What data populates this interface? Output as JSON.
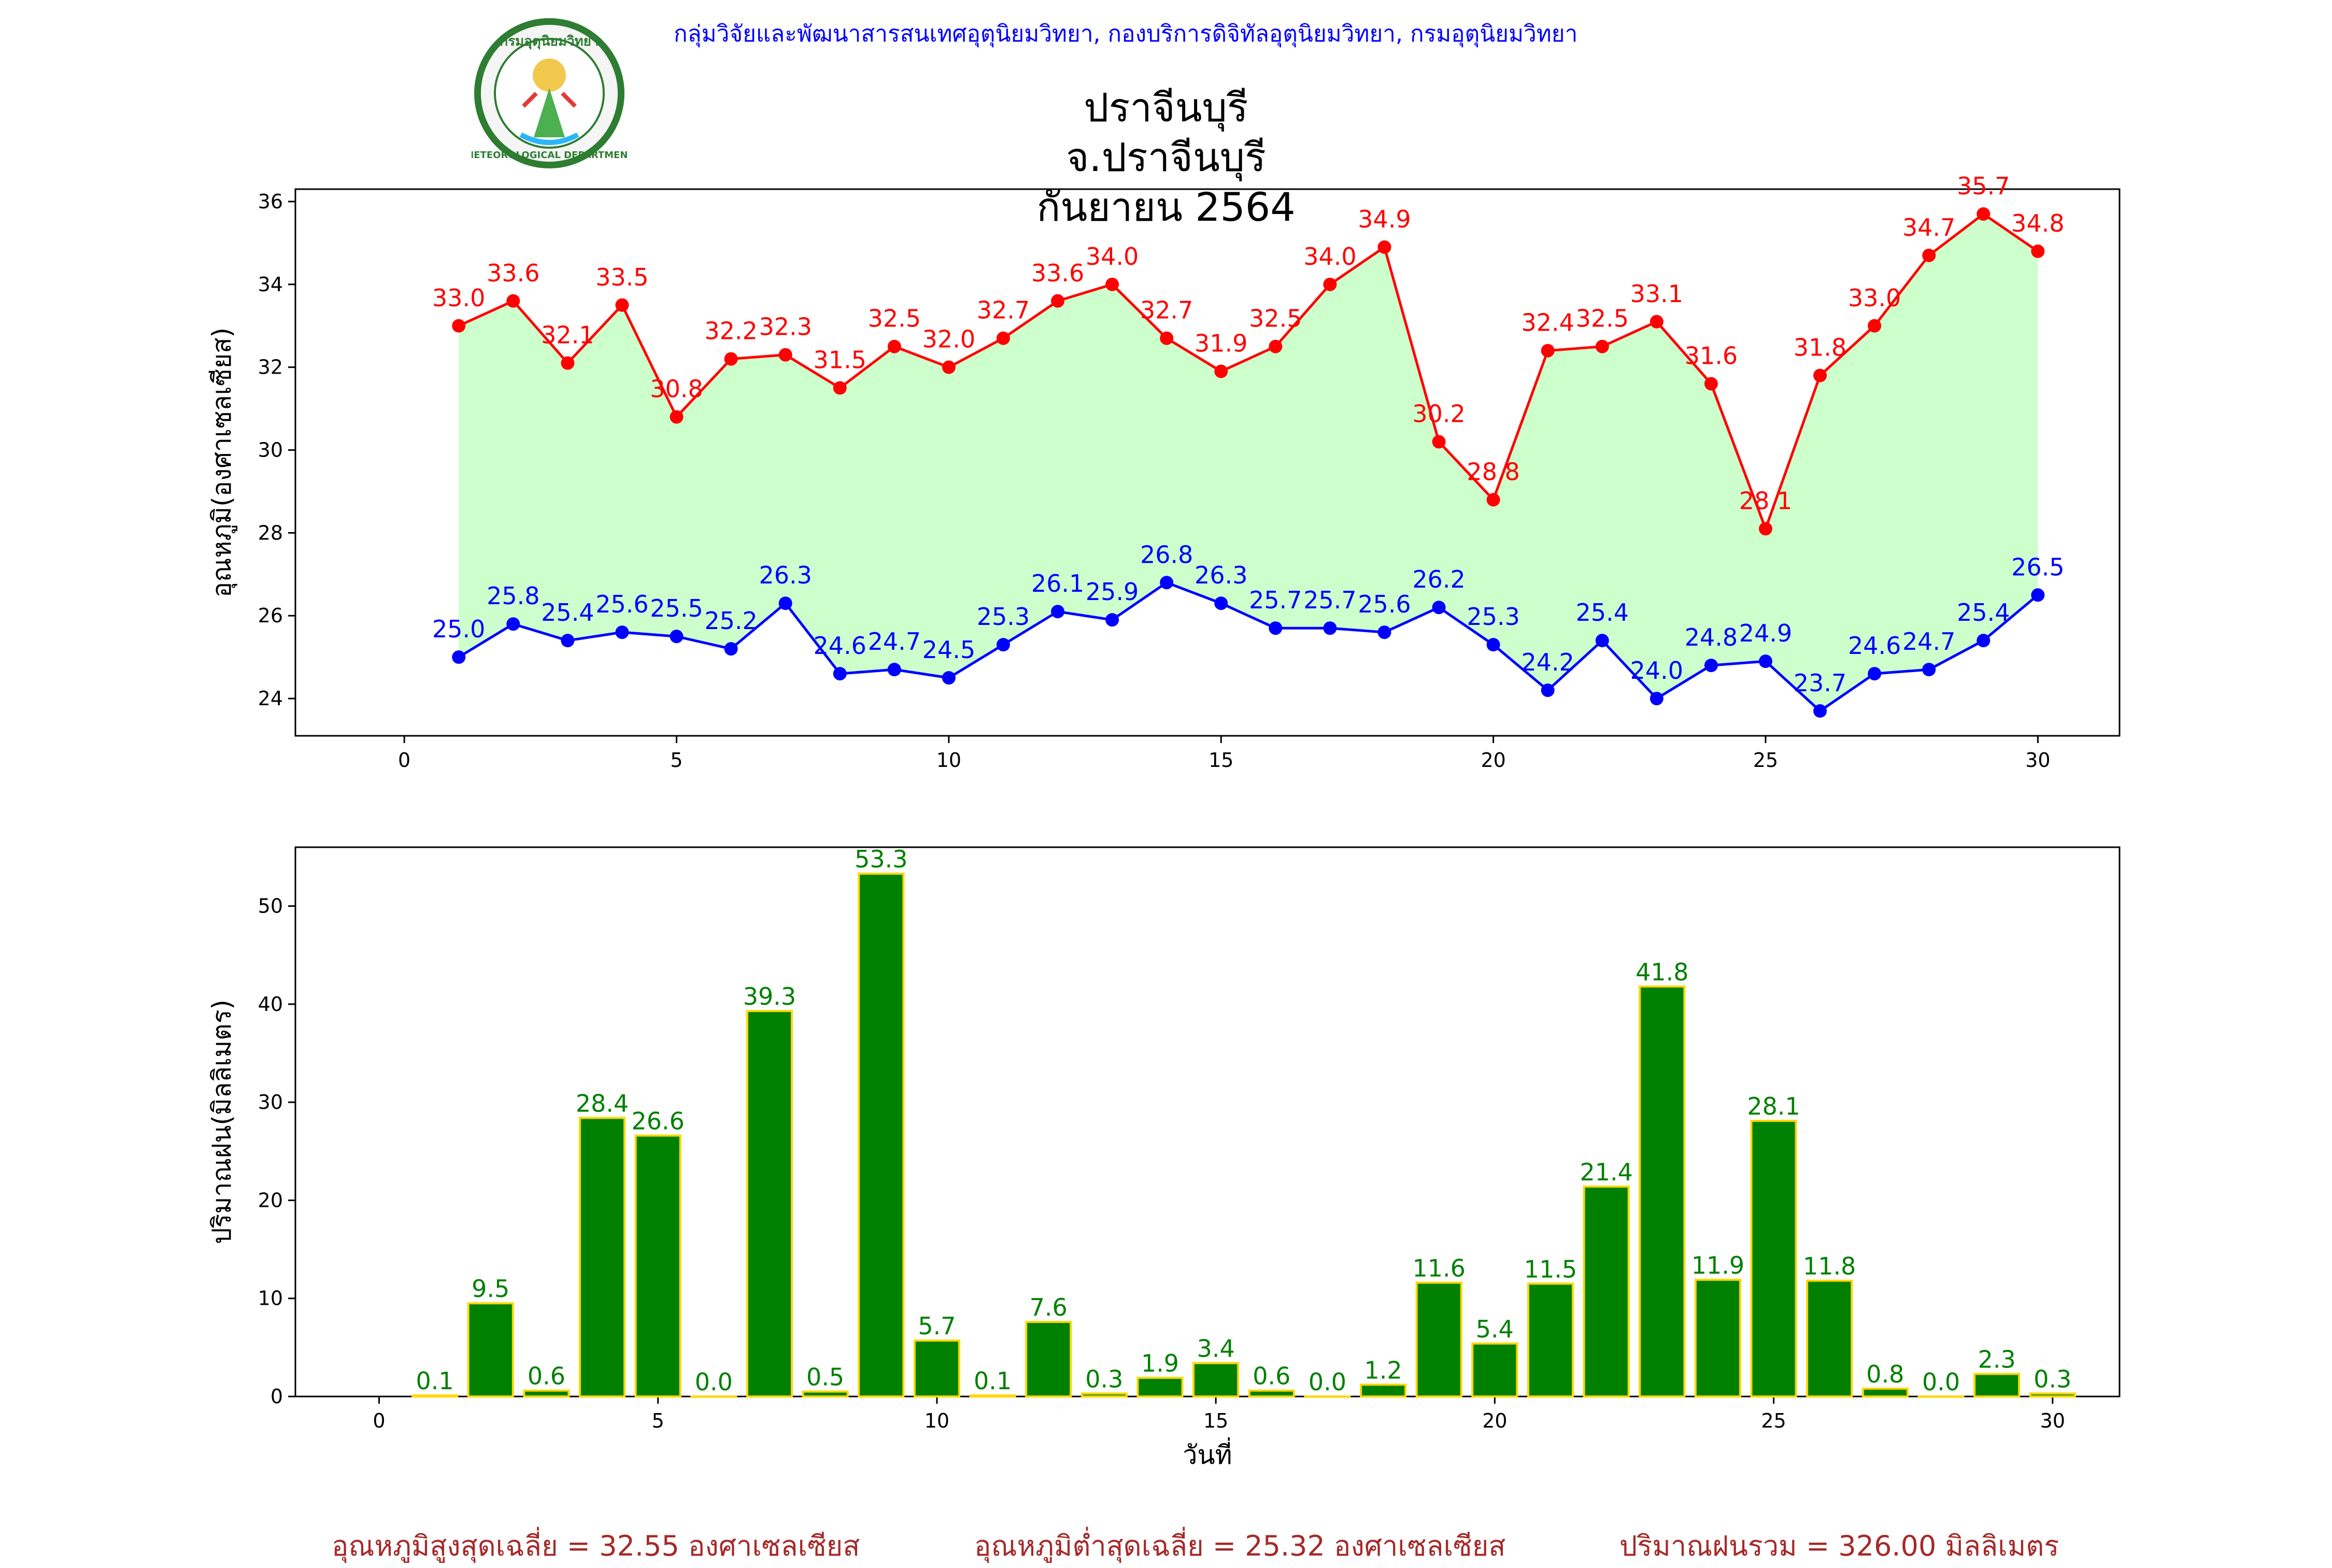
{
  "header": {
    "department_line": "กลุ่มวิจัยและพัฒนาสารสนเทศอุตุนิยมวิทยา, กองบริการดิจิทัลอุตุนิยมวิทยา, กรมอุตุนิยมวิทยา",
    "seal_text": "METEOROLOGICAL DEPARTMENT",
    "seal_top_text": "กรมอุตุนิยมวิทยา"
  },
  "title": {
    "line1": "ปราจีนบุรี จ.ปราจีนบุรี",
    "line2": "กันยายน 2564"
  },
  "footer": {
    "avg_max": "อุณหภูมิสูงสุดเฉลี่ย = 32.55 องศาเซลเซียส",
    "avg_min": "อุณหภูมิต่ำสุดเฉลี่ย = 25.32 องศาเซลเซียส",
    "total_rain": "ปริมาณฝนรวม = 326.00 มิลลิเมตร"
  },
  "colors": {
    "max_line": "#ff0000",
    "min_line": "#0000ff",
    "fill": "#ccffcc",
    "bar": "#008000",
    "bar_edge": "#ffd700",
    "bar_label": "#008000",
    "footer": "#a52a2a",
    "header": "#0000ff"
  },
  "chart_data": [
    {
      "type": "line",
      "ylabel": "อุณหภูมิ(องศาเซลเซียส)",
      "xlabel": "",
      "xlim": [
        -2,
        31.5
      ],
      "ylim": [
        23.1,
        36.3
      ],
      "xticks": [
        0,
        5,
        10,
        15,
        20,
        25,
        30
      ],
      "yticks": [
        24,
        26,
        28,
        30,
        32,
        34,
        36
      ],
      "x": [
        1,
        2,
        3,
        4,
        5,
        6,
        7,
        8,
        9,
        10,
        11,
        12,
        13,
        14,
        15,
        16,
        17,
        18,
        19,
        20,
        21,
        22,
        23,
        24,
        25,
        26,
        27,
        28,
        29,
        30
      ],
      "series": [
        {
          "key": "max",
          "values": [
            33.0,
            33.6,
            32.1,
            33.5,
            30.8,
            32.2,
            32.3,
            31.5,
            32.5,
            32.0,
            32.7,
            33.6,
            34.0,
            32.7,
            31.9,
            32.5,
            34.0,
            34.9,
            30.2,
            28.8,
            32.4,
            32.5,
            33.1,
            31.6,
            28.1,
            31.8,
            33.0,
            34.7,
            35.7,
            34.8
          ],
          "labels": [
            "33.0",
            "33.6",
            "32.1",
            "33.5",
            "30.8",
            "32.2",
            "32.3",
            "31.5",
            "32.5",
            "32.0",
            "32.7",
            "33.6",
            "34.0",
            "32.7",
            "31.9",
            "32.5",
            "34.0",
            "34.9",
            "30.2",
            "28.8",
            "32.4",
            "32.5",
            "33.1",
            "31.6",
            "28.1",
            "31.8",
            "33.0",
            "34.7",
            "35.7",
            "34.8"
          ]
        },
        {
          "key": "min",
          "values": [
            25.0,
            25.8,
            25.4,
            25.6,
            25.5,
            25.2,
            26.3,
            24.6,
            24.7,
            24.5,
            25.3,
            26.1,
            25.9,
            26.8,
            26.3,
            25.7,
            25.7,
            25.6,
            26.2,
            25.3,
            24.2,
            25.4,
            24.0,
            24.8,
            24.9,
            23.7,
            24.6,
            24.7,
            25.4,
            26.5
          ],
          "labels": [
            "25.0",
            "25.8",
            "25.4",
            "25.6",
            "25.5",
            "25.2",
            "26.3",
            "24.6",
            "24.7",
            "24.5",
            "25.3",
            "26.1",
            "25.9",
            "26.8",
            "26.3",
            "25.7",
            "25.7",
            "25.6",
            "26.2",
            "25.3",
            "24.2",
            "25.4",
            "24.0",
            "24.8",
            "24.9",
            "23.7",
            "24.6",
            "24.7",
            "25.4",
            "26.5"
          ]
        }
      ],
      "grid": false
    },
    {
      "type": "bar",
      "ylabel": "ปริมาณฝน(มิลลิเมตร)",
      "xlabel": "วันที่",
      "xlim": [
        -1.5,
        31.2
      ],
      "ylim": [
        0,
        56
      ],
      "xticks": [
        0,
        5,
        10,
        15,
        20,
        25,
        30
      ],
      "yticks": [
        0,
        10,
        20,
        30,
        40,
        50
      ],
      "x": [
        1,
        2,
        3,
        4,
        5,
        6,
        7,
        8,
        9,
        10,
        11,
        12,
        13,
        14,
        15,
        16,
        17,
        18,
        19,
        20,
        21,
        22,
        23,
        24,
        25,
        26,
        27,
        28,
        29,
        30
      ],
      "values": [
        0.1,
        9.5,
        0.6,
        28.4,
        26.6,
        0.0,
        39.3,
        0.5,
        53.3,
        5.7,
        0.1,
        7.6,
        0.3,
        1.9,
        3.4,
        0.6,
        0.0,
        1.2,
        11.6,
        5.4,
        11.5,
        21.4,
        41.8,
        11.9,
        28.1,
        11.8,
        0.8,
        0.0,
        2.3,
        0.3
      ],
      "labels": [
        "0.1",
        "9.5",
        "0.6",
        "28.4",
        "26.6",
        "0.0",
        "39.3",
        "0.5",
        "53.3",
        "5.7",
        "0.1",
        "7.6",
        "0.3",
        "1.9",
        "3.4",
        "0.6",
        "0.0",
        "1.2",
        "11.6",
        "5.4",
        "11.5",
        "21.4",
        "41.8",
        "11.9",
        "28.1",
        "11.8",
        "0.8",
        "0.0",
        "2.3",
        "0.3"
      ],
      "grid": false
    }
  ]
}
